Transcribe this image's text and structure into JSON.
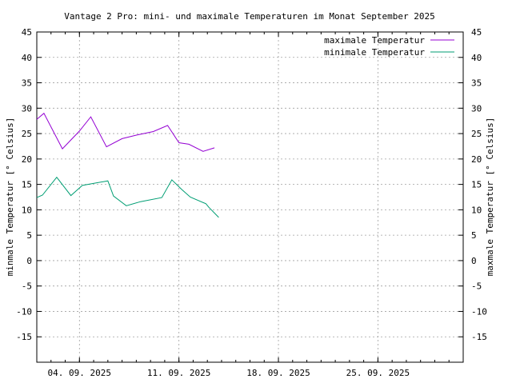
{
  "chart_data": {
    "type": "line",
    "title": "Vantage 2 Pro: mini- und maximale Temperaturen im Monat September 2025",
    "ylabel_left": "minmale Temperatur [° Celsius]",
    "ylabel_right": "maxmale Temperatur [° Celsius]",
    "xlabel": "",
    "x_range_days": [
      1,
      31
    ],
    "ylim": [
      -20,
      45
    ],
    "y_ticks": [
      -15,
      -10,
      -5,
      0,
      5,
      10,
      15,
      20,
      25,
      30,
      35,
      40,
      45
    ],
    "x_ticks": [
      {
        "day": 4,
        "label": "04. 09. 2025"
      },
      {
        "day": 11,
        "label": "11. 09. 2025"
      },
      {
        "day": 18,
        "label": "18. 09. 2025"
      },
      {
        "day": 25,
        "label": "25. 09. 2025"
      }
    ],
    "grid": true,
    "legend_position": "top-right",
    "series": [
      {
        "name": "maximale Temperatur",
        "color": "#9400d3",
        "points": [
          [
            1,
            27.8
          ],
          [
            1.5,
            29.0
          ],
          [
            2.8,
            22.0
          ],
          [
            4,
            25.5
          ],
          [
            4.8,
            28.3
          ],
          [
            5.9,
            22.4
          ],
          [
            7,
            24.0
          ],
          [
            8,
            24.7
          ],
          [
            9.2,
            25.4
          ],
          [
            10.2,
            26.6
          ],
          [
            11,
            23.2
          ],
          [
            11.7,
            22.9
          ],
          [
            12.7,
            21.5
          ],
          [
            13.5,
            22.2
          ]
        ]
      },
      {
        "name": "minimale Temperatur",
        "color": "#009e73",
        "points": [
          [
            1,
            12.4
          ],
          [
            1.4,
            12.9
          ],
          [
            2.4,
            16.4
          ],
          [
            3.4,
            12.8
          ],
          [
            4.2,
            14.8
          ],
          [
            6,
            15.7
          ],
          [
            6.4,
            12.7
          ],
          [
            7.3,
            10.8
          ],
          [
            8.3,
            11.6
          ],
          [
            9.8,
            12.4
          ],
          [
            10.5,
            15.9
          ],
          [
            11.2,
            14.0
          ],
          [
            11.8,
            12.5
          ],
          [
            12.9,
            11.2
          ],
          [
            13.1,
            10.5
          ],
          [
            13.8,
            8.5
          ]
        ]
      }
    ]
  }
}
